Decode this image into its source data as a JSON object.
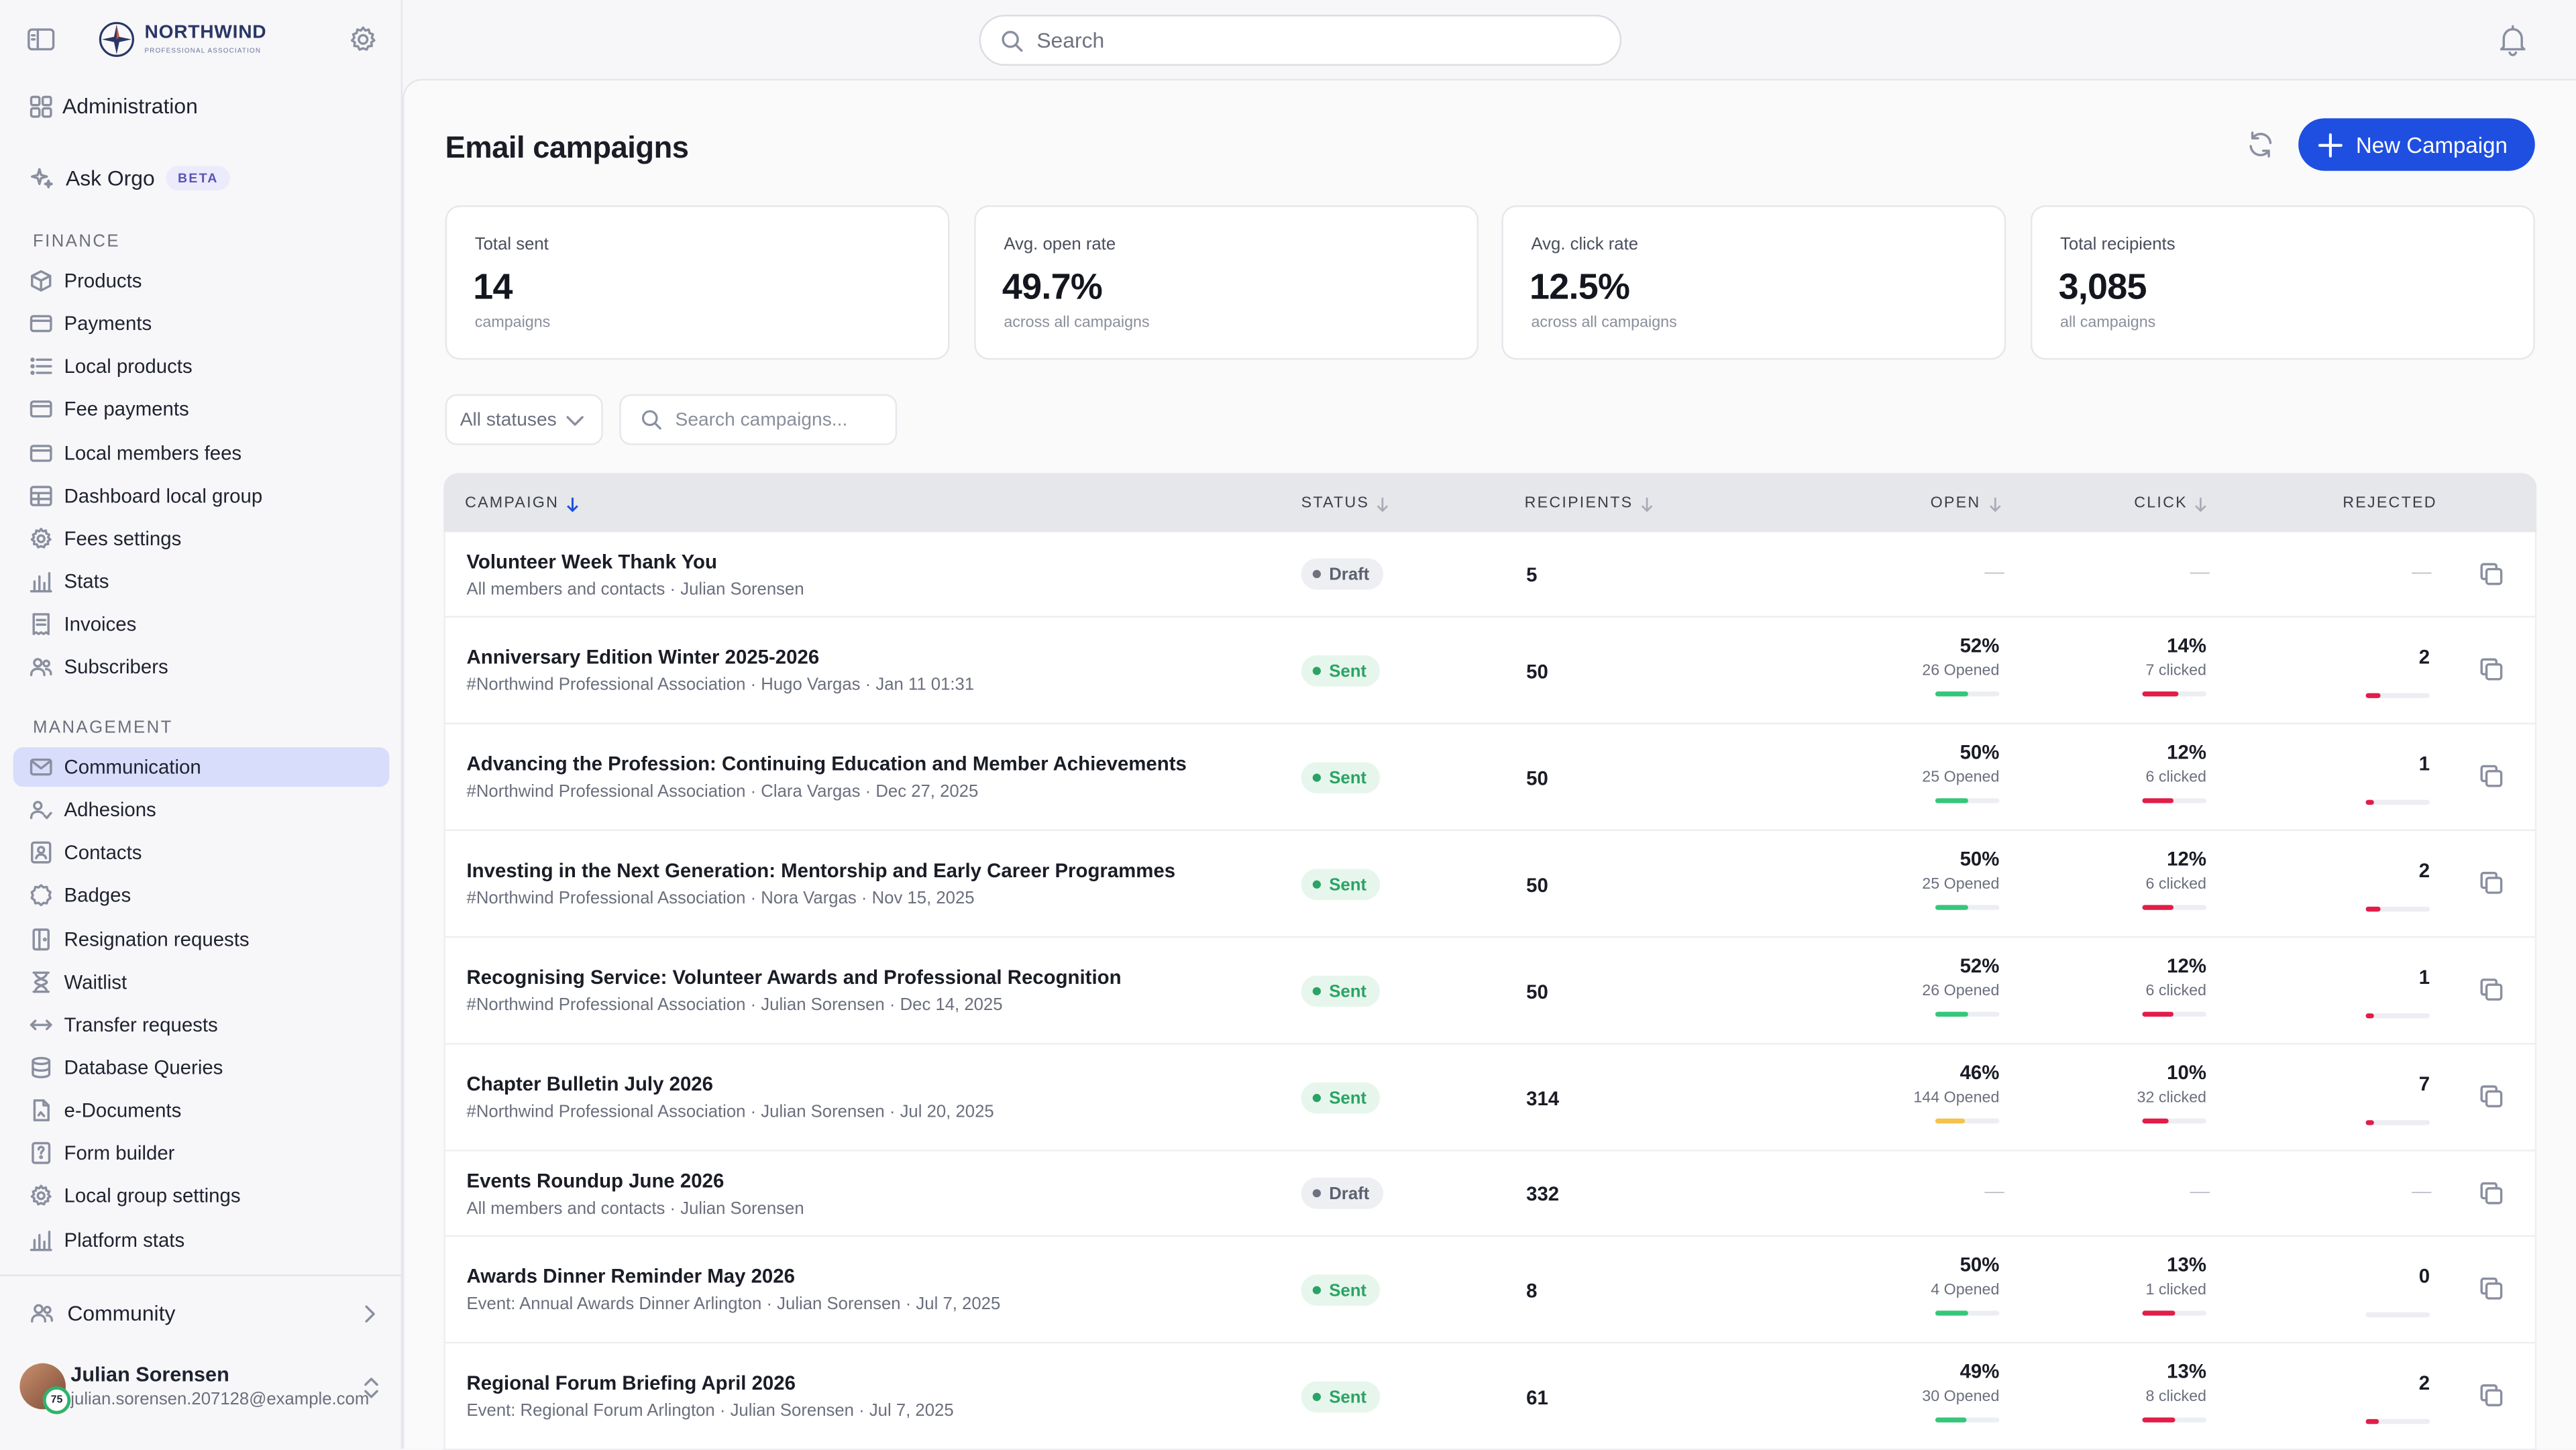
{
  "app": {
    "logo_name": "NORTHWIND",
    "logo_sub": "PROFESSIONAL ASSOCIATION",
    "search_placeholder": "Search"
  },
  "sidebar": {
    "admin_label": "Administration",
    "ask_label": "Ask Orgo",
    "beta_badge": "BETA",
    "finance_title": "FINANCE",
    "finance_items": [
      {
        "label": "Products",
        "icon": "cube-icon"
      },
      {
        "label": "Payments",
        "icon": "credit-card-icon"
      },
      {
        "label": "Local products",
        "icon": "list-icon"
      },
      {
        "label": "Fee payments",
        "icon": "credit-card-icon"
      },
      {
        "label": "Local members fees",
        "icon": "credit-card-icon"
      },
      {
        "label": "Dashboard local group",
        "icon": "table-icon"
      },
      {
        "label": "Fees settings",
        "icon": "gear-icon"
      },
      {
        "label": "Stats",
        "icon": "bar-chart-icon"
      },
      {
        "label": "Invoices",
        "icon": "receipt-icon"
      },
      {
        "label": "Subscribers",
        "icon": "users-icon"
      }
    ],
    "management_title": "MANAGEMENT",
    "management_items": [
      {
        "label": "Communication",
        "icon": "mail-icon",
        "active": true
      },
      {
        "label": "Adhesions",
        "icon": "user-check-icon"
      },
      {
        "label": "Contacts",
        "icon": "contact-card-icon"
      },
      {
        "label": "Badges",
        "icon": "badge-icon"
      },
      {
        "label": "Resignation requests",
        "icon": "door-icon"
      },
      {
        "label": "Waitlist",
        "icon": "hourglass-icon"
      },
      {
        "label": "Transfer requests",
        "icon": "arrows-horizontal-icon"
      },
      {
        "label": "Database Queries",
        "icon": "database-icon"
      },
      {
        "label": "e-Documents",
        "icon": "document-icon"
      },
      {
        "label": "Form builder",
        "icon": "form-icon"
      },
      {
        "label": "Local group settings",
        "icon": "gear-icon"
      },
      {
        "label": "Platform stats",
        "icon": "bar-chart-icon"
      }
    ],
    "community_label": "Community",
    "user": {
      "name": "Julian Sorensen",
      "email": "julian.sorensen.207128@example.com",
      "badge": "75"
    }
  },
  "page": {
    "title": "Email campaigns",
    "new_button": "New Campaign"
  },
  "stats": [
    {
      "label": "Total sent",
      "value": "14",
      "sub": "campaigns"
    },
    {
      "label": "Avg. open rate",
      "value": "49.7%",
      "sub": "across all campaigns"
    },
    {
      "label": "Avg. click rate",
      "value": "12.5%",
      "sub": "across all campaigns"
    },
    {
      "label": "Total recipients",
      "value": "3,085",
      "sub": "all campaigns"
    }
  ],
  "filters": {
    "status_select": "All statuses",
    "search_placeholder": "Search campaigns..."
  },
  "table": {
    "columns": {
      "campaign": "CAMPAIGN",
      "status": "STATUS",
      "recipients": "RECIPIENTS",
      "open": "OPEN",
      "click": "CLICK",
      "rejected": "REJECTED"
    },
    "empty_placeholder": "—",
    "rows": [
      {
        "title": "Volunteer Week Thank You",
        "sub": "All members and contacts · Julian Sorensen",
        "status": "Draft",
        "recipients": "5"
      },
      {
        "title": "Anniversary Edition Winter 2025-2026",
        "sub": "#Northwind Professional Association · Hugo Vargas · Jan 11 01:31",
        "status": "Sent",
        "recipients": "50",
        "open_pct": "52%",
        "open_count": "26 Opened",
        "open_rate": 0.52,
        "click_pct": "14%",
        "click_count": "7 clicked",
        "click_rate": 0.14,
        "rejected": "2",
        "rejected_rate": 0.04
      },
      {
        "title": "Advancing the Profession: Continuing Education and Member Achievements",
        "sub": "#Northwind Professional Association · Clara Vargas · Dec 27, 2025",
        "status": "Sent",
        "recipients": "50",
        "open_pct": "50%",
        "open_count": "25 Opened",
        "open_rate": 0.5,
        "click_pct": "12%",
        "click_count": "6 clicked",
        "click_rate": 0.12,
        "rejected": "1",
        "rejected_rate": 0.02
      },
      {
        "title": "Investing in the Next Generation: Mentorship and Early Career Programmes",
        "sub": "#Northwind Professional Association · Nora Vargas · Nov 15, 2025",
        "status": "Sent",
        "recipients": "50",
        "open_pct": "50%",
        "open_count": "25 Opened",
        "open_rate": 0.5,
        "click_pct": "12%",
        "click_count": "6 clicked",
        "click_rate": 0.12,
        "rejected": "2",
        "rejected_rate": 0.04
      },
      {
        "title": "Recognising Service: Volunteer Awards and Professional Recognition",
        "sub": "#Northwind Professional Association · Julian Sorensen · Dec 14, 2025",
        "status": "Sent",
        "recipients": "50",
        "open_pct": "52%",
        "open_count": "26 Opened",
        "open_rate": 0.52,
        "click_pct": "12%",
        "click_count": "6 clicked",
        "click_rate": 0.12,
        "rejected": "1",
        "rejected_rate": 0.02
      },
      {
        "title": "Chapter Bulletin July 2026",
        "sub": "#Northwind Professional Association · Julian Sorensen · Jul 20, 2025",
        "status": "Sent",
        "recipients": "314",
        "open_pct": "46%",
        "open_count": "144 Opened",
        "open_rate": 0.46,
        "click_pct": "10%",
        "click_count": "32 clicked",
        "click_rate": 0.1,
        "rejected": "7",
        "rejected_rate": 0.022
      },
      {
        "title": "Events Roundup June 2026",
        "sub": "All members and contacts · Julian Sorensen",
        "status": "Draft",
        "recipients": "332"
      },
      {
        "title": "Awards Dinner Reminder May 2026",
        "sub": "Event: Annual Awards Dinner Arlington · Julian Sorensen · Jul 7, 2025",
        "status": "Sent",
        "recipients": "8",
        "open_pct": "50%",
        "open_count": "4 Opened",
        "open_rate": 0.5,
        "click_pct": "13%",
        "click_count": "1 clicked",
        "click_rate": 0.13,
        "rejected": "0",
        "rejected_rate": 0
      },
      {
        "title": "Regional Forum Briefing April 2026",
        "sub": "Event: Regional Forum Arlington · Julian Sorensen · Jul 7, 2025",
        "status": "Sent",
        "recipients": "61",
        "open_pct": "49%",
        "open_count": "30 Opened",
        "open_rate": 0.49,
        "click_pct": "13%",
        "click_count": "8 clicked",
        "click_rate": 0.13,
        "rejected": "2",
        "rejected_rate": 0.033
      }
    ]
  },
  "colors": {
    "accent": "#1f4fe0",
    "active_nav": "#d8ddfb",
    "sent": "#2aa464",
    "open_bar_high": "#34c77b",
    "open_bar_low": "#f5c24b",
    "click_bar": "#e11d48"
  }
}
